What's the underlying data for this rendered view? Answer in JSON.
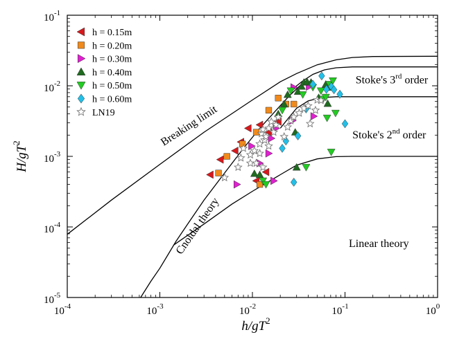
{
  "chart_data": {
    "type": "scatter",
    "x_scale": "log",
    "y_scale": "log",
    "xlim": [
      0.0001,
      1
    ],
    "ylim": [
      1e-05,
      0.1
    ],
    "xlabel": "h/gT",
    "xlabel_sup": "2",
    "ylabel": "H/gT",
    "ylabel_sup": "2",
    "x_ticks": [
      {
        "value": 0.0001,
        "base": "10",
        "exp": "-4"
      },
      {
        "value": 0.001,
        "base": "10",
        "exp": "-3"
      },
      {
        "value": 0.01,
        "base": "10",
        "exp": "-2"
      },
      {
        "value": 0.1,
        "base": "10",
        "exp": "-1"
      },
      {
        "value": 1,
        "base": "10",
        "exp": "0"
      }
    ],
    "y_ticks": [
      {
        "value": 1e-05,
        "base": "10",
        "exp": "-5"
      },
      {
        "value": 0.0001,
        "base": "10",
        "exp": "-4"
      },
      {
        "value": 0.001,
        "base": "10",
        "exp": "-3"
      },
      {
        "value": 0.01,
        "base": "10",
        "exp": "-2"
      },
      {
        "value": 0.1,
        "base": "10",
        "exp": "-1"
      }
    ],
    "legend_position": "top-left",
    "series": [
      {
        "name": "h = 0.15m",
        "marker": "triangle-left",
        "color": "#d7191c",
        "points": [
          [
            0.0035,
            0.00055
          ],
          [
            0.0045,
            0.0009
          ],
          [
            0.0065,
            0.0012
          ],
          [
            0.0075,
            0.0016
          ],
          [
            0.009,
            0.0025
          ],
          [
            0.012,
            0.0028
          ],
          [
            0.015,
            0.0022
          ],
          [
            0.019,
            0.0031
          ],
          [
            0.014,
            0.0006
          ],
          [
            0.011,
            0.00045
          ]
        ]
      },
      {
        "name": "h = 0.20m",
        "marker": "square",
        "color": "#f08a1c",
        "points": [
          [
            0.0043,
            0.00058
          ],
          [
            0.0053,
            0.001
          ],
          [
            0.0078,
            0.0015
          ],
          [
            0.011,
            0.0022
          ],
          [
            0.015,
            0.0045
          ],
          [
            0.019,
            0.0067
          ],
          [
            0.023,
            0.0055
          ],
          [
            0.028,
            0.0055
          ],
          [
            0.012,
            0.0004
          ]
        ]
      },
      {
        "name": "h = 0.30m",
        "marker": "triangle-right",
        "color": "#e020d0",
        "points": [
          [
            0.0068,
            0.0004
          ],
          [
            0.0098,
            0.0014
          ],
          [
            0.016,
            0.0018
          ],
          [
            0.018,
            0.0025
          ],
          [
            0.027,
            0.0032
          ],
          [
            0.028,
            0.0095
          ],
          [
            0.041,
            0.0097
          ],
          [
            0.046,
            0.0037
          ],
          [
            0.015,
            0.0011
          ],
          [
            0.017,
            0.00045
          ],
          [
            0.012,
            0.0008
          ]
        ]
      },
      {
        "name": "h = 0.40m",
        "marker": "triangle-up",
        "color": "#1f6b1f",
        "points": [
          [
            0.0105,
            0.00057
          ],
          [
            0.012,
            0.00055
          ],
          [
            0.019,
            0.004
          ],
          [
            0.022,
            0.0055
          ],
          [
            0.024,
            0.0075
          ],
          [
            0.029,
            0.0022
          ],
          [
            0.031,
            0.0083
          ],
          [
            0.034,
            0.0098
          ],
          [
            0.036,
            0.0112
          ],
          [
            0.039,
            0.0114
          ],
          [
            0.043,
            0.0112
          ],
          [
            0.052,
            0.0068
          ],
          [
            0.062,
            0.0105
          ],
          [
            0.068,
            0.0095
          ],
          [
            0.065,
            0.0056
          ],
          [
            0.03,
            0.0007
          ]
        ]
      },
      {
        "name": "h = 0.50m",
        "marker": "triangle-down",
        "color": "#22cc22",
        "points": [
          [
            0.013,
            0.00045
          ],
          [
            0.014,
            0.0004
          ],
          [
            0.021,
            0.0045
          ],
          [
            0.026,
            0.0085
          ],
          [
            0.035,
            0.0075
          ],
          [
            0.045,
            0.0095
          ],
          [
            0.055,
            0.0085
          ],
          [
            0.058,
            0.0065
          ],
          [
            0.062,
            0.0069
          ],
          [
            0.064,
            0.0035
          ],
          [
            0.068,
            0.0105
          ],
          [
            0.074,
            0.0118
          ],
          [
            0.079,
            0.0041
          ],
          [
            0.071,
            0.00115
          ],
          [
            0.038,
            0.0007
          ]
        ]
      },
      {
        "name": "h = 0.60m",
        "marker": "diamond",
        "color": "#22c0e8",
        "points": [
          [
            0.021,
            0.0013
          ],
          [
            0.023,
            0.00165
          ],
          [
            0.028,
            0.00043
          ],
          [
            0.031,
            0.00195
          ],
          [
            0.038,
            0.0047
          ],
          [
            0.045,
            0.0105
          ],
          [
            0.056,
            0.0138
          ],
          [
            0.063,
            0.0089
          ],
          [
            0.071,
            0.0098
          ],
          [
            0.076,
            0.0088
          ],
          [
            0.088,
            0.0076
          ],
          [
            0.1,
            0.0029
          ]
        ]
      },
      {
        "name": "LN19",
        "marker": "star",
        "color": "#777777",
        "points": [
          [
            0.005,
            0.0005
          ],
          [
            0.007,
            0.0007
          ],
          [
            0.0075,
            0.00095
          ],
          [
            0.008,
            0.0013
          ],
          [
            0.0095,
            0.0008
          ],
          [
            0.0095,
            0.00105
          ],
          [
            0.0105,
            0.0012
          ],
          [
            0.011,
            0.0008
          ],
          [
            0.012,
            0.0011
          ],
          [
            0.012,
            0.0015
          ],
          [
            0.0125,
            0.0021
          ],
          [
            0.013,
            0.0024
          ],
          [
            0.013,
            0.0007
          ],
          [
            0.0135,
            0.0017
          ],
          [
            0.014,
            0.0019
          ],
          [
            0.015,
            0.0014
          ],
          [
            0.015,
            0.0025
          ],
          [
            0.016,
            0.0031
          ],
          [
            0.017,
            0.0022
          ],
          [
            0.018,
            0.0028
          ],
          [
            0.019,
            0.0036
          ],
          [
            0.022,
            0.0019
          ],
          [
            0.024,
            0.0026
          ],
          [
            0.026,
            0.0032
          ],
          [
            0.028,
            0.0036
          ],
          [
            0.032,
            0.0041
          ],
          [
            0.036,
            0.0048
          ],
          [
            0.04,
            0.0052
          ],
          [
            0.042,
            0.0029
          ],
          [
            0.048,
            0.0045
          ],
          [
            0.05,
            0.0063
          ],
          [
            0.055,
            0.0062
          ]
        ]
      }
    ],
    "curves": [
      {
        "name": "Breaking limit",
        "points": [
          [
            0.0001,
            7.85e-05
          ],
          [
            0.0003,
            0.00024
          ],
          [
            0.001,
            0.00077
          ],
          [
            0.003,
            0.0022
          ],
          [
            0.01,
            0.0063
          ],
          [
            0.02,
            0.0114
          ],
          [
            0.03,
            0.0149
          ],
          [
            0.05,
            0.0198
          ],
          [
            0.08,
            0.0233
          ],
          [
            0.12,
            0.0252
          ],
          [
            0.2,
            0.026
          ],
          [
            1,
            0.0262
          ]
        ]
      },
      {
        "name": "Cnoidal theory",
        "points": [
          [
            0.00062,
            1e-05
          ],
          [
            0.0008,
            1.7e-05
          ],
          [
            0.001,
            2.6e-05
          ],
          [
            0.0015,
            6.3e-05
          ],
          [
            0.002,
            0.00011
          ],
          [
            0.003,
            0.00024
          ],
          [
            0.005,
            0.00058
          ],
          [
            0.008,
            0.0013
          ],
          [
            0.012,
            0.0025
          ],
          [
            0.018,
            0.0045
          ],
          [
            0.025,
            0.0072
          ],
          [
            0.032,
            0.0098
          ],
          [
            0.036,
            0.0112
          ]
        ]
      },
      {
        "name": "Stoke's 3rd order boundary",
        "points": [
          [
            0.028,
            0.0093
          ],
          [
            0.035,
            0.0117
          ],
          [
            0.045,
            0.0145
          ],
          [
            0.06,
            0.0168
          ],
          [
            0.08,
            0.018
          ],
          [
            0.12,
            0.0185
          ],
          [
            1,
            0.0185
          ]
        ]
      },
      {
        "name": "Stoke's 2nd order boundary",
        "points": [
          [
            0.02,
            0.0025
          ],
          [
            0.025,
            0.0036
          ],
          [
            0.03,
            0.0048
          ],
          [
            0.04,
            0.0061
          ],
          [
            0.055,
            0.0068
          ],
          [
            0.08,
            0.007
          ],
          [
            0.12,
            0.007
          ],
          [
            1,
            0.007
          ]
        ]
      },
      {
        "name": "Linear theory boundary",
        "points": [
          [
            0.0014,
            5.5e-05
          ],
          [
            0.003,
            0.00011
          ],
          [
            0.006,
            0.00021
          ],
          [
            0.01,
            0.00032
          ],
          [
            0.02,
            0.00055
          ],
          [
            0.03,
            0.00075
          ],
          [
            0.05,
            0.00092
          ],
          [
            0.08,
            0.00099
          ],
          [
            0.12,
            0.001
          ],
          [
            1,
            0.001
          ]
        ]
      }
    ],
    "annotations": [
      {
        "text": "Breaking limit",
        "x": 0.0011,
        "y": 0.0014,
        "angle": -33
      },
      {
        "text": "Cnoidal theory",
        "x": 0.0017,
        "y": 4e-05,
        "angle": -55
      },
      {
        "text": "Stoke's 3",
        "sup": "rd",
        "tail": " order",
        "x": 0.13,
        "y": 0.0108
      },
      {
        "text": "Stoke's 2",
        "sup": "nd",
        "tail": " order",
        "x": 0.12,
        "y": 0.0018
      },
      {
        "text": "Linear theory",
        "x": 0.11,
        "y": 5.2e-05
      }
    ]
  }
}
